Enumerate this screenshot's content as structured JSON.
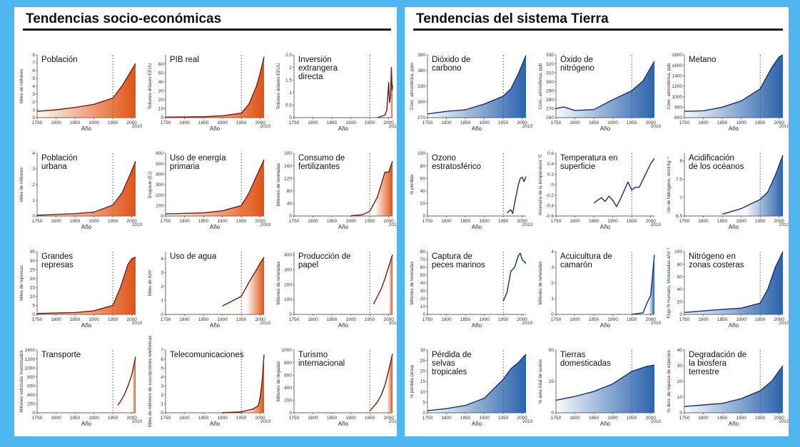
{
  "panels": [
    {
      "title": "Tendencias socio-económicas"
    },
    {
      "title": "Tendencias del sistema Tierra"
    }
  ],
  "colors": {
    "background": "#4fb6ef",
    "socio_line": "#7a1a10",
    "socio_fill": "#e05418",
    "earth_line": "#1c2f6e",
    "earth_fill": "#2c63ad"
  },
  "chart_data": [
    {
      "panel": 0,
      "row": 0,
      "col": 0,
      "type": "area",
      "title": "Población",
      "ylabel": "Miles de millones",
      "xlabel": "Año",
      "x_ticks": [
        1750,
        1800,
        1850,
        1900,
        1950,
        2000
      ],
      "x_end_label": "2010",
      "y_ticks": [
        0,
        1,
        2,
        3,
        4,
        5,
        6,
        7,
        8
      ],
      "ylim": [
        0,
        8
      ],
      "x": [
        1750,
        1800,
        1850,
        1900,
        1950,
        1975,
        2000,
        2010
      ],
      "y": [
        0.8,
        1.0,
        1.3,
        1.7,
        2.5,
        4.1,
        6.1,
        6.9
      ]
    },
    {
      "panel": 0,
      "row": 0,
      "col": 1,
      "type": "area",
      "title": "PIB real",
      "ylabel": "Trillones dólares EEUU",
      "xlabel": "Año",
      "x_ticks": [
        1750,
        1800,
        1850,
        1900,
        1950,
        2000
      ],
      "x_end_label": "2010",
      "y_ticks": [
        0,
        10,
        20,
        30,
        40,
        50,
        60
      ],
      "ylim": [
        0,
        70
      ],
      "x": [
        1750,
        1850,
        1900,
        1950,
        1970,
        1990,
        2000,
        2010
      ],
      "y": [
        0.5,
        1,
        2,
        5,
        15,
        35,
        50,
        68
      ]
    },
    {
      "panel": 0,
      "row": 0,
      "col": 2,
      "type": "area",
      "title": "Inversión extrangera directa",
      "ylabel": "Trillones dólares EEUU",
      "xlabel": "Año",
      "x_ticks": [
        1750,
        1800,
        1850,
        1900,
        1950,
        2000
      ],
      "x_end_label": "2010",
      "y_ticks": [
        0,
        0.5,
        1,
        1.5,
        2,
        2.5
      ],
      "ylim": [
        0,
        2.5
      ],
      "x": [
        1970,
        1990,
        1995,
        2000,
        2002,
        2005,
        2007,
        2009,
        2010
      ],
      "y": [
        0,
        0.1,
        0.3,
        1.4,
        0.6,
        0.9,
        2.0,
        1.1,
        1.3
      ]
    },
    {
      "panel": 0,
      "row": 1,
      "col": 0,
      "type": "area",
      "title": "Población urbana",
      "ylabel": "Miles de millones",
      "xlabel": "Año",
      "x_ticks": [
        1750,
        1800,
        1850,
        1900,
        1950,
        2000
      ],
      "x_end_label": "2010",
      "y_ticks": [
        0,
        1,
        2,
        3,
        4
      ],
      "ylim": [
        0,
        4
      ],
      "x": [
        1750,
        1800,
        1850,
        1900,
        1950,
        1975,
        2000,
        2010
      ],
      "y": [
        0.05,
        0.1,
        0.15,
        0.25,
        0.7,
        1.5,
        2.9,
        3.5
      ]
    },
    {
      "panel": 0,
      "row": 1,
      "col": 1,
      "type": "area",
      "title": "Uso de energía primaria",
      "ylabel": "Exajoule (EJ)",
      "xlabel": "Año",
      "x_ticks": [
        1750,
        1800,
        1850,
        1900,
        1950,
        2000
      ],
      "x_end_label": "2010",
      "y_ticks": [
        0,
        100,
        200,
        300,
        400,
        500,
        600
      ],
      "ylim": [
        0,
        600
      ],
      "x": [
        1750,
        1850,
        1900,
        1950,
        1970,
        1990,
        2010
      ],
      "y": [
        20,
        30,
        50,
        100,
        220,
        380,
        540
      ]
    },
    {
      "panel": 0,
      "row": 1,
      "col": 2,
      "type": "area",
      "title": "Consumo de fertilizantes",
      "ylabel": "Millones de toneladas",
      "xlabel": "Año",
      "x_ticks": [
        1750,
        1800,
        1850,
        1900,
        1950,
        2000
      ],
      "x_end_label": "2010",
      "y_ticks": [
        0,
        40,
        80,
        120,
        160,
        200
      ],
      "ylim": [
        0,
        200
      ],
      "x": [
        1900,
        1930,
        1950,
        1970,
        1990,
        2000,
        2010
      ],
      "y": [
        1,
        4,
        15,
        60,
        140,
        140,
        175
      ]
    },
    {
      "panel": 0,
      "row": 2,
      "col": 0,
      "type": "area",
      "title": "Grandes represas",
      "ylabel": "Miles de represas",
      "xlabel": "Año",
      "x_ticks": [
        1750,
        1800,
        1850,
        1900,
        1950,
        2000
      ],
      "x_end_label": "2010",
      "y_ticks": [
        0,
        5,
        10,
        15,
        20,
        25,
        30,
        35
      ],
      "ylim": [
        0,
        35
      ],
      "x": [
        1750,
        1850,
        1900,
        1950,
        1970,
        1990,
        2000,
        2010
      ],
      "y": [
        0.5,
        1,
        2,
        5,
        15,
        28,
        31,
        32
      ]
    },
    {
      "panel": 0,
      "row": 2,
      "col": 1,
      "type": "area",
      "title": "Uso de agua",
      "ylabel": "Miles de Km³",
      "xlabel": "Año",
      "x_ticks": [
        1750,
        1800,
        1850,
        1900,
        1950,
        2000
      ],
      "x_end_label": "2010",
      "y_ticks": [
        0,
        1,
        2,
        3,
        4
      ],
      "ylim": [
        0,
        4.5
      ],
      "x": [
        1900,
        1950,
        1970,
        1990,
        2000,
        2010
      ],
      "y": [
        0.6,
        1.3,
        2.3,
        3.2,
        3.7,
        4.1
      ]
    },
    {
      "panel": 0,
      "row": 2,
      "col": 2,
      "type": "area",
      "title": "Producción de papel",
      "ylabel": "Millones de toneladas",
      "xlabel": "Año",
      "x_ticks": [
        1750,
        1800,
        1850,
        1900,
        1950,
        2000
      ],
      "x_end_label": "2010",
      "y_ticks": [
        0,
        100,
        200,
        300,
        400
      ],
      "ylim": [
        0,
        420
      ],
      "x": [
        1960,
        1970,
        1980,
        1990,
        2000,
        2010
      ],
      "y": [
        70,
        120,
        170,
        240,
        320,
        400
      ]
    },
    {
      "panel": 0,
      "row": 3,
      "col": 0,
      "type": "area",
      "title": "Transporte",
      "ylabel": "Millones vehículos motorizados",
      "xlabel": "Año",
      "x_ticks": [
        1750,
        1800,
        1850,
        1900,
        1950,
        2000
      ],
      "x_end_label": "2010",
      "y_ticks": [
        0,
        200,
        400,
        600,
        800,
        1000,
        1200,
        1400
      ],
      "ylim": [
        0,
        1400
      ],
      "x": [
        1963,
        1970,
        1980,
        1990,
        2000,
        2010
      ],
      "y": [
        170,
        250,
        400,
        600,
        850,
        1250
      ]
    },
    {
      "panel": 0,
      "row": 3,
      "col": 1,
      "type": "area",
      "title": "Telecomunicaciones",
      "ylabel": "Miles de millones de suscripciones telefónicas",
      "xlabel": "Año",
      "x_ticks": [
        1750,
        1800,
        1850,
        1900,
        1950,
        2000
      ],
      "x_end_label": "2010",
      "y_ticks": [
        0,
        1,
        2,
        3,
        4,
        5,
        6,
        7
      ],
      "ylim": [
        0,
        7
      ],
      "x": [
        1900,
        1950,
        1980,
        1995,
        2000,
        2005,
        2010
      ],
      "y": [
        0.01,
        0.1,
        0.4,
        0.8,
        1.8,
        3.5,
        6.5
      ]
    },
    {
      "panel": 0,
      "row": 3,
      "col": 2,
      "type": "area",
      "title": "Turismo internacional",
      "ylabel": "Millones de llegadas",
      "xlabel": "Año",
      "x_ticks": [
        1750,
        1800,
        1850,
        1900,
        1950,
        2000
      ],
      "x_end_label": "2010",
      "y_ticks": [
        0,
        200,
        400,
        600,
        800,
        1000
      ],
      "ylim": [
        0,
        1000
      ],
      "x": [
        1950,
        1970,
        1980,
        1990,
        2000,
        2010
      ],
      "y": [
        25,
        170,
        280,
        440,
        680,
        940
      ]
    },
    {
      "panel": 1,
      "row": 0,
      "col": 0,
      "type": "area",
      "title": "Dióxido de carbono",
      "ylabel": "Conc. atmosférica, ppm",
      "xlabel": "Año",
      "x_ticks": [
        1750,
        1800,
        1850,
        1900,
        1950,
        2000
      ],
      "x_end_label": "2010",
      "y_ticks": [
        270,
        300,
        330,
        360,
        390
      ],
      "ylim": [
        270,
        390
      ],
      "x": [
        1750,
        1800,
        1850,
        1900,
        1950,
        1970,
        1990,
        2010
      ],
      "y": [
        277,
        282,
        285,
        296,
        311,
        325,
        354,
        389
      ]
    },
    {
      "panel": 1,
      "row": 0,
      "col": 1,
      "type": "area",
      "title": "Óxido de nitrógeno",
      "ylabel": "Conc. atmosférica, ppb",
      "xlabel": "Año",
      "x_ticks": [
        1750,
        1800,
        1850,
        1900,
        1950,
        2000
      ],
      "x_end_label": "2010",
      "y_ticks": [
        260,
        270,
        280,
        290,
        300,
        310,
        320,
        330
      ],
      "ylim": [
        260,
        330
      ],
      "x": [
        1750,
        1770,
        1800,
        1850,
        1900,
        1950,
        1980,
        2010
      ],
      "y": [
        270,
        272,
        268,
        269,
        280,
        290,
        301,
        323
      ]
    },
    {
      "panel": 1,
      "row": 0,
      "col": 2,
      "type": "area",
      "title": "Metano",
      "ylabel": "Conc. atmosférica, ppb",
      "xlabel": "Año",
      "x_ticks": [
        1750,
        1800,
        1850,
        1900,
        1950,
        2000
      ],
      "x_end_label": "2010",
      "y_ticks": [
        600,
        800,
        1000,
        1200,
        1400,
        1600,
        1800
      ],
      "ylim": [
        600,
        1800
      ],
      "x": [
        1750,
        1800,
        1850,
        1900,
        1950,
        1980,
        2000,
        2010
      ],
      "y": [
        720,
        730,
        800,
        920,
        1150,
        1550,
        1760,
        1800
      ]
    },
    {
      "panel": 1,
      "row": 1,
      "col": 0,
      "type": "line",
      "title": "Ozono estratosférico",
      "ylabel": "% pérdida",
      "xlabel": "Año",
      "x_ticks": [
        1750,
        1800,
        1850,
        1900,
        1950,
        2000
      ],
      "x_end_label": "2010",
      "y_ticks": [
        0,
        20,
        40,
        60,
        80,
        100
      ],
      "ylim": [
        0,
        100
      ],
      "x": [
        1960,
        1970,
        1975,
        1980,
        1985,
        1990,
        1995,
        2000,
        2005,
        2010
      ],
      "y": [
        5,
        10,
        4,
        20,
        35,
        50,
        60,
        62,
        55,
        63
      ]
    },
    {
      "panel": 1,
      "row": 1,
      "col": 1,
      "type": "line",
      "title": "Temperatura en superficie",
      "ylabel": "Anomalía de la temperatura °C",
      "xlabel": "Año",
      "x_ticks": [
        1750,
        1800,
        1850,
        1900,
        1950,
        2000
      ],
      "x_end_label": "2010",
      "y_ticks": [
        -0.6,
        -0.4,
        -0.2,
        0,
        0.2,
        0.4,
        0.6
      ],
      "ylim": [
        -0.6,
        0.6
      ],
      "x": [
        1850,
        1870,
        1880,
        1890,
        1900,
        1910,
        1920,
        1940,
        1950,
        1960,
        1970,
        1980,
        1990,
        2000,
        2010
      ],
      "y": [
        -0.35,
        -0.25,
        -0.32,
        -0.22,
        -0.3,
        -0.42,
        -0.28,
        0.05,
        -0.1,
        -0.05,
        -0.05,
        0.1,
        0.25,
        0.4,
        0.5
      ]
    },
    {
      "panel": 1,
      "row": 1,
      "col": 2,
      "type": "area",
      "title": "Acidificación de los océanos",
      "ylabel": "Ión de hidrógeno, nmol kg⁻¹",
      "xlabel": "Año",
      "x_ticks": [
        1750,
        1800,
        1850,
        1900,
        1950,
        2000
      ],
      "x_end_label": "2010",
      "y_ticks": [
        6.5,
        7.0,
        7.5,
        8.0
      ],
      "ylim": [
        6.5,
        8.2
      ],
      "x": [
        1850,
        1900,
        1950,
        1970,
        1990,
        2010
      ],
      "y": [
        6.55,
        6.7,
        6.95,
        7.15,
        7.6,
        8.15
      ]
    },
    {
      "panel": 1,
      "row": 2,
      "col": 0,
      "type": "line",
      "title": "Captura de peces marinos",
      "ylabel": "Millones de toneladas",
      "xlabel": "Año",
      "x_ticks": [
        1750,
        1800,
        1850,
        1900,
        1950,
        2000
      ],
      "x_end_label": "2010",
      "y_ticks": [
        0,
        10,
        20,
        30,
        40,
        50,
        60,
        70,
        80
      ],
      "ylim": [
        0,
        80
      ],
      "x": [
        1950,
        1960,
        1970,
        1980,
        1990,
        1995,
        2000,
        2010
      ],
      "y": [
        17,
        28,
        55,
        60,
        75,
        78,
        70,
        65
      ]
    },
    {
      "panel": 1,
      "row": 2,
      "col": 1,
      "type": "area",
      "title": "Acuicultura de camarón",
      "ylabel": "Millones de toneladas",
      "xlabel": "Año",
      "x_ticks": [
        1750,
        1800,
        1850,
        1900,
        1950,
        2000
      ],
      "x_end_label": "2010",
      "y_ticks": [
        0,
        1,
        2,
        3,
        4
      ],
      "ylim": [
        0,
        4
      ],
      "x": [
        1950,
        1980,
        1990,
        2000,
        2005,
        2010
      ],
      "y": [
        0.01,
        0.1,
        0.7,
        1.2,
        2.5,
        3.8
      ]
    },
    {
      "panel": 1,
      "row": 2,
      "col": 2,
      "type": "area",
      "title": "Nitrógeno en zonas costeras",
      "ylabel": "Flujo N Humano, Mtoneladas año⁻¹",
      "xlabel": "Año",
      "x_ticks": [
        1750,
        1800,
        1850,
        1900,
        1950,
        2000
      ],
      "x_end_label": "2010",
      "y_ticks": [
        0,
        20,
        40,
        60,
        80,
        100
      ],
      "ylim": [
        0,
        100
      ],
      "x": [
        1750,
        1850,
        1900,
        1950,
        1970,
        1990,
        2010
      ],
      "y": [
        3,
        8,
        10,
        18,
        40,
        75,
        100
      ]
    },
    {
      "panel": 1,
      "row": 3,
      "col": 0,
      "type": "area",
      "title": "Pérdida de selvas tropicales",
      "ylabel": "% pérdida (área)",
      "xlabel": "Año",
      "x_ticks": [
        1750,
        1800,
        1850,
        1900,
        1950,
        2000
      ],
      "x_end_label": "2010",
      "y_ticks": [
        0,
        5,
        10,
        15,
        20,
        25,
        30
      ],
      "ylim": [
        0,
        30
      ],
      "x": [
        1750,
        1800,
        1850,
        1900,
        1950,
        1970,
        1990,
        2010
      ],
      "y": [
        1,
        2,
        3.5,
        7,
        16,
        21,
        24,
        28
      ]
    },
    {
      "panel": 1,
      "row": 3,
      "col": 1,
      "type": "area",
      "title": "Tierras domesticadas",
      "ylabel": "% área total de suelos",
      "xlabel": "Año",
      "x_ticks": [
        1750,
        1800,
        1850,
        1900,
        1950,
        2000
      ],
      "x_end_label": "2010",
      "y_ticks": [
        0,
        25,
        50
      ],
      "ylim": [
        0,
        50
      ],
      "x": [
        1750,
        1800,
        1850,
        1900,
        1950,
        1970,
        1990,
        2010
      ],
      "y": [
        10,
        13,
        17,
        23,
        33,
        35,
        37,
        38
      ]
    },
    {
      "panel": 1,
      "row": 3,
      "col": 2,
      "type": "area",
      "title": "Degradación de la biosfera terrestre",
      "ylabel": "% decr. de riqueza de especies",
      "xlabel": "Año",
      "x_ticks": [
        1750,
        1800,
        1850,
        1900,
        1950,
        2000
      ],
      "x_end_label": "2010",
      "y_ticks": [
        0,
        10,
        20,
        30,
        40
      ],
      "ylim": [
        0,
        40
      ],
      "x": [
        1750,
        1800,
        1850,
        1900,
        1950,
        1980,
        2010
      ],
      "y": [
        4,
        5,
        6,
        9,
        14,
        20,
        30
      ]
    }
  ]
}
